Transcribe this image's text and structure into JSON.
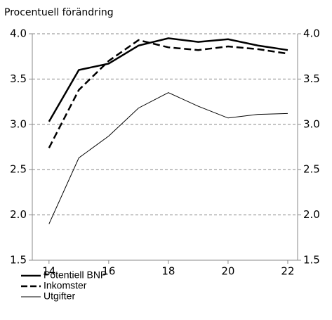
{
  "chart_data": {
    "type": "line",
    "title": "Procentuell förändring",
    "x": [
      14,
      15,
      16,
      17,
      18,
      19,
      20,
      21,
      22
    ],
    "series": [
      {
        "name": "Potentiell BNP",
        "color": "#000000",
        "linewidth": 2.5,
        "dashed": false,
        "values": [
          3.03,
          3.6,
          3.67,
          3.87,
          3.95,
          3.91,
          3.94,
          3.87,
          3.82
        ]
      },
      {
        "name": "Inkomster",
        "color": "#000000",
        "linewidth": 2.5,
        "dashed": true,
        "values": [
          2.74,
          3.38,
          3.7,
          3.93,
          3.85,
          3.82,
          3.86,
          3.83,
          3.78
        ]
      },
      {
        "name": "Utgifter",
        "color": "#000000",
        "linewidth": 1,
        "dashed": false,
        "values": [
          1.9,
          2.63,
          2.87,
          3.18,
          3.35,
          3.2,
          3.07,
          3.11,
          3.12
        ]
      }
    ],
    "xlim": [
      13.44,
      22.33
    ],
    "xticks": [
      14,
      16,
      18,
      20,
      22
    ],
    "ylim": [
      1.5,
      4.0
    ],
    "yticks": [
      {
        "value": 1.5,
        "label": "1.5"
      },
      {
        "value": 2,
        "label": "2.0"
      },
      {
        "value": 2.5,
        "label": "2.5"
      },
      {
        "value": 3,
        "label": "3.0"
      },
      {
        "value": 3.5,
        "label": "3.5"
      },
      {
        "value": 4,
        "label": "4.0"
      }
    ],
    "y2lim": [
      1.5,
      4.0
    ],
    "y2ticks": [
      {
        "value": 1.5,
        "label": "1.5"
      },
      {
        "value": 2,
        "label": "2.0"
      },
      {
        "value": 2.5,
        "label": "2.5"
      },
      {
        "value": 3,
        "label": "3.0"
      },
      {
        "value": 3.5,
        "label": "3.5"
      },
      {
        "value": 4,
        "label": "4.0"
      }
    ],
    "grid": true,
    "legend": "bottom-left"
  }
}
